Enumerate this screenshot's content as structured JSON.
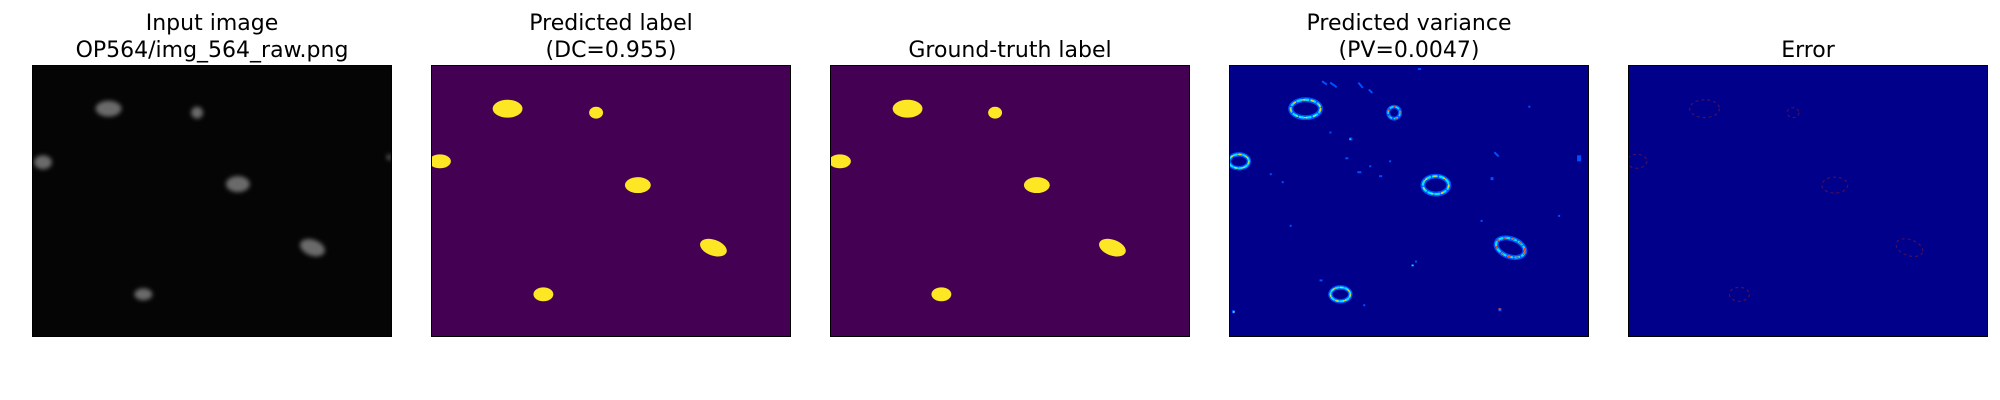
{
  "panels": [
    {
      "id": "input",
      "title_line1": "Input image",
      "title_line2": "OP564/img_564_raw.png"
    },
    {
      "id": "predicted",
      "title_line1": "Predicted label",
      "title_line2": "(DC=0.955)"
    },
    {
      "id": "ground-truth",
      "title_line1": "Ground-truth label",
      "title_line2": ""
    },
    {
      "id": "variance",
      "title_line1": "Predicted variance",
      "title_line2": "(PV=0.0047)"
    },
    {
      "id": "error",
      "title_line1": "Error",
      "title_line2": ""
    }
  ],
  "colors": {
    "input_background": "#050505",
    "input_nucleus": "#6a6a6a",
    "label_background": "#440154",
    "label_foreground": "#fde725",
    "variance_background": "#00008b",
    "variance_mid": "#0050ff",
    "variance_high": "#00e5ff",
    "variance_peak": "#ffd000",
    "error_background": "#00008b",
    "error_mark": "#5a1050"
  }
}
